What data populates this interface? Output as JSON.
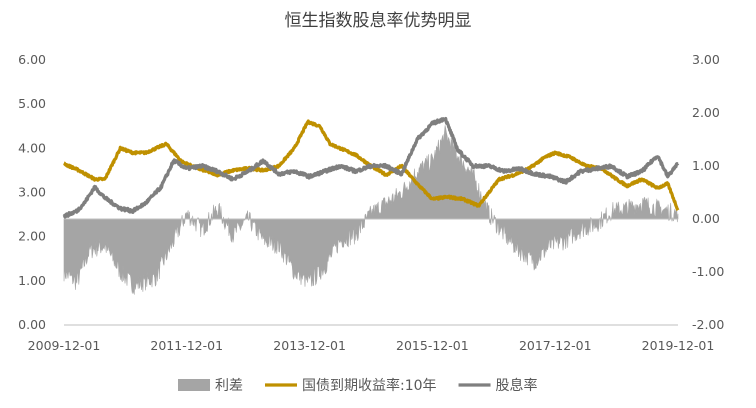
{
  "chart_data": {
    "type": "line",
    "title": "恒生指数股息率优势明显",
    "xlabel": "",
    "ylabel": "",
    "x_ticks": [
      "2009-12-01",
      "2011-12-01",
      "2013-12-01",
      "2015-12-01",
      "2017-12-01",
      "2019-12-01"
    ],
    "y_left": {
      "lim": [
        0,
        6
      ],
      "ticks": [
        "0.00",
        "1.00",
        "2.00",
        "3.00",
        "4.00",
        "5.00",
        "6.00"
      ]
    },
    "y_right": {
      "lim": [
        -2,
        3
      ],
      "ticks": [
        "-2.00",
        "-1.00",
        "0.00",
        "1.00",
        "2.00",
        "3.00"
      ]
    },
    "x_start": "2009-12-01",
    "x_end": "2019-12-01",
    "grid": false,
    "legend_position": "bottom",
    "series": [
      {
        "name": "利差",
        "type": "area",
        "axis": "right",
        "color": "#a5a5a5",
        "points": [
          [
            "2009-12-01",
            -1.0
          ],
          [
            "2010-02-15",
            -1.2
          ],
          [
            "2010-05-01",
            -0.6
          ],
          [
            "2010-08-01",
            -0.5
          ],
          [
            "2010-11-01",
            -1.0
          ],
          [
            "2011-01-15",
            -1.25
          ],
          [
            "2011-03-15",
            -1.2
          ],
          [
            "2011-06-01",
            -1.1
          ],
          [
            "2011-09-01",
            -0.5
          ],
          [
            "2011-12-01",
            0.1
          ],
          [
            "2012-03-01",
            -0.2
          ],
          [
            "2012-06-01",
            0.2
          ],
          [
            "2012-09-01",
            -0.3
          ],
          [
            "2012-12-01",
            0.0
          ],
          [
            "2013-03-01",
            -0.4
          ],
          [
            "2013-06-01",
            -0.5
          ],
          [
            "2013-09-01",
            -1.0
          ],
          [
            "2013-12-01",
            -1.2
          ],
          [
            "2014-03-01",
            -0.9
          ],
          [
            "2014-06-01",
            -0.4
          ],
          [
            "2014-09-01",
            -0.3
          ],
          [
            "2014-12-01",
            0.1
          ],
          [
            "2015-03-01",
            0.3
          ],
          [
            "2015-06-01",
            0.5
          ],
          [
            "2015-09-01",
            0.9
          ],
          [
            "2015-12-01",
            1.1
          ],
          [
            "2016-02-15",
            1.6
          ],
          [
            "2016-05-01",
            1.2
          ],
          [
            "2016-08-01",
            0.8
          ],
          [
            "2016-11-01",
            0.1
          ],
          [
            "2017-02-01",
            -0.3
          ],
          [
            "2017-05-01",
            -0.6
          ],
          [
            "2017-08-01",
            -0.8
          ],
          [
            "2017-11-01",
            -0.5
          ],
          [
            "2018-02-01",
            -0.4
          ],
          [
            "2018-05-01",
            -0.2
          ],
          [
            "2018-08-01",
            -0.1
          ],
          [
            "2018-11-01",
            0.15
          ],
          [
            "2019-02-01",
            0.2
          ],
          [
            "2019-05-01",
            0.3
          ],
          [
            "2019-08-01",
            0.2
          ],
          [
            "2019-12-01",
            0.1
          ]
        ]
      },
      {
        "name": "国债到期收益率:10年",
        "type": "line",
        "axis": "left",
        "color": "#bf9000",
        "points": [
          [
            "2009-12-01",
            3.65
          ],
          [
            "2010-03-01",
            3.5
          ],
          [
            "2010-06-01",
            3.3
          ],
          [
            "2010-08-01",
            3.3
          ],
          [
            "2010-11-01",
            4.0
          ],
          [
            "2011-01-15",
            3.9
          ],
          [
            "2011-04-01",
            3.9
          ],
          [
            "2011-08-01",
            4.1
          ],
          [
            "2011-11-01",
            3.7
          ],
          [
            "2012-02-01",
            3.55
          ],
          [
            "2012-06-01",
            3.4
          ],
          [
            "2012-09-01",
            3.5
          ],
          [
            "2012-12-01",
            3.55
          ],
          [
            "2013-03-01",
            3.5
          ],
          [
            "2013-06-01",
            3.6
          ],
          [
            "2013-09-01",
            4.0
          ],
          [
            "2013-11-20",
            4.6
          ],
          [
            "2014-02-01",
            4.5
          ],
          [
            "2014-04-01",
            4.1
          ],
          [
            "2014-06-01",
            4.0
          ],
          [
            "2014-09-01",
            3.85
          ],
          [
            "2014-12-01",
            3.6
          ],
          [
            "2015-03-01",
            3.4
          ],
          [
            "2015-06-01",
            3.6
          ],
          [
            "2015-09-01",
            3.2
          ],
          [
            "2015-12-01",
            2.85
          ],
          [
            "2016-03-01",
            2.9
          ],
          [
            "2016-06-01",
            2.85
          ],
          [
            "2016-09-01",
            2.7
          ],
          [
            "2016-11-01",
            3.0
          ],
          [
            "2017-01-01",
            3.3
          ],
          [
            "2017-04-01",
            3.4
          ],
          [
            "2017-07-01",
            3.55
          ],
          [
            "2017-10-01",
            3.8
          ],
          [
            "2017-12-01",
            3.9
          ],
          [
            "2018-03-01",
            3.8
          ],
          [
            "2018-06-01",
            3.6
          ],
          [
            "2018-09-01",
            3.55
          ],
          [
            "2018-12-01",
            3.3
          ],
          [
            "2019-02-01",
            3.15
          ],
          [
            "2019-05-01",
            3.3
          ],
          [
            "2019-08-01",
            3.1
          ],
          [
            "2019-10-01",
            3.2
          ],
          [
            "2019-12-01",
            2.6
          ]
        ]
      },
      {
        "name": "股息率",
        "type": "line",
        "axis": "right",
        "color": "#7f7f7f",
        "points": [
          [
            "2009-12-01",
            0.05
          ],
          [
            "2010-02-15",
            0.15
          ],
          [
            "2010-04-01",
            0.3
          ],
          [
            "2010-06-01",
            0.6
          ],
          [
            "2010-08-01",
            0.4
          ],
          [
            "2010-11-01",
            0.2
          ],
          [
            "2011-01-15",
            0.15
          ],
          [
            "2011-04-01",
            0.3
          ],
          [
            "2011-07-01",
            0.6
          ],
          [
            "2011-09-15",
            1.1
          ],
          [
            "2011-12-01",
            0.95
          ],
          [
            "2012-03-01",
            1.0
          ],
          [
            "2012-06-01",
            0.9
          ],
          [
            "2012-09-01",
            0.75
          ],
          [
            "2012-12-01",
            0.9
          ],
          [
            "2013-03-01",
            1.1
          ],
          [
            "2013-06-01",
            0.85
          ],
          [
            "2013-09-01",
            0.9
          ],
          [
            "2013-12-01",
            0.8
          ],
          [
            "2014-03-01",
            0.9
          ],
          [
            "2014-06-01",
            1.0
          ],
          [
            "2014-09-01",
            0.9
          ],
          [
            "2014-12-01",
            1.0
          ],
          [
            "2015-03-01",
            1.0
          ],
          [
            "2015-06-01",
            0.85
          ],
          [
            "2015-09-01",
            1.5
          ],
          [
            "2015-12-01",
            1.8
          ],
          [
            "2016-02-15",
            1.9
          ],
          [
            "2016-05-01",
            1.3
          ],
          [
            "2016-08-01",
            1.0
          ],
          [
            "2016-11-01",
            1.0
          ],
          [
            "2017-02-01",
            0.9
          ],
          [
            "2017-05-01",
            0.95
          ],
          [
            "2017-08-01",
            0.85
          ],
          [
            "2017-11-01",
            0.8
          ],
          [
            "2018-02-01",
            0.7
          ],
          [
            "2018-05-01",
            0.9
          ],
          [
            "2018-08-01",
            0.95
          ],
          [
            "2018-11-01",
            1.0
          ],
          [
            "2019-02-01",
            0.8
          ],
          [
            "2019-05-01",
            0.9
          ],
          [
            "2019-08-01",
            1.2
          ],
          [
            "2019-10-01",
            0.8
          ],
          [
            "2019-12-01",
            1.05
          ]
        ]
      }
    ]
  }
}
